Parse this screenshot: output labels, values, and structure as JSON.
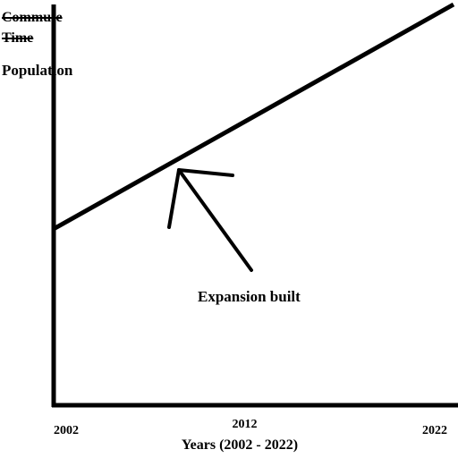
{
  "chart_data": {
    "type": "line",
    "struck_label": "Commute Time",
    "ylabel": "Population",
    "xlabel": "Years (2002 - 2022)",
    "annotation": "Expansion built",
    "x": [
      2002,
      2022
    ],
    "series": [
      {
        "values": [
          44,
          100
        ],
        "color": "#000000"
      }
    ],
    "xlim": [
      2002,
      2022
    ],
    "xticks": [
      2002,
      2012,
      2022
    ],
    "ylim": [
      0,
      100
    ]
  }
}
